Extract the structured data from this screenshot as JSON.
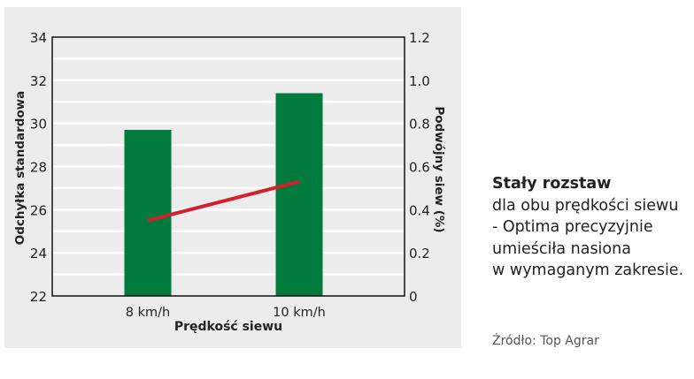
{
  "chart_data": {
    "type": "bar+line",
    "categories": [
      "8 km/h",
      "10 km/h"
    ],
    "xlabel": "Prędkość siewu",
    "ylabel_left": "Odchyłka standardowa",
    "ylabel_right": "Podwójny siew (%)",
    "ylim_left": [
      22,
      34
    ],
    "ylim_right": [
      0,
      1.2
    ],
    "yticks_left": [
      "22",
      "24",
      "26",
      "28",
      "30",
      "32",
      "34"
    ],
    "yticks_right": [
      "0",
      "0.2",
      "0.4",
      "0.6",
      "0.8",
      "1.0",
      "1.2"
    ],
    "grid": true,
    "series": [
      {
        "type": "bar",
        "axis": "left",
        "values": [
          29.7,
          31.4
        ],
        "color": "#007a3d"
      },
      {
        "type": "line",
        "axis": "right",
        "values": [
          0.35,
          0.53
        ],
        "color": "#d4202a"
      }
    ]
  },
  "side": {
    "title": "Stały rozstaw",
    "lines": [
      "dla obu prędkości siewu",
      "- Optima precyzyjnie",
      "umieściła nasiona",
      "w wymaganym zakresie."
    ]
  },
  "source": "Źródło: Top Agrar"
}
